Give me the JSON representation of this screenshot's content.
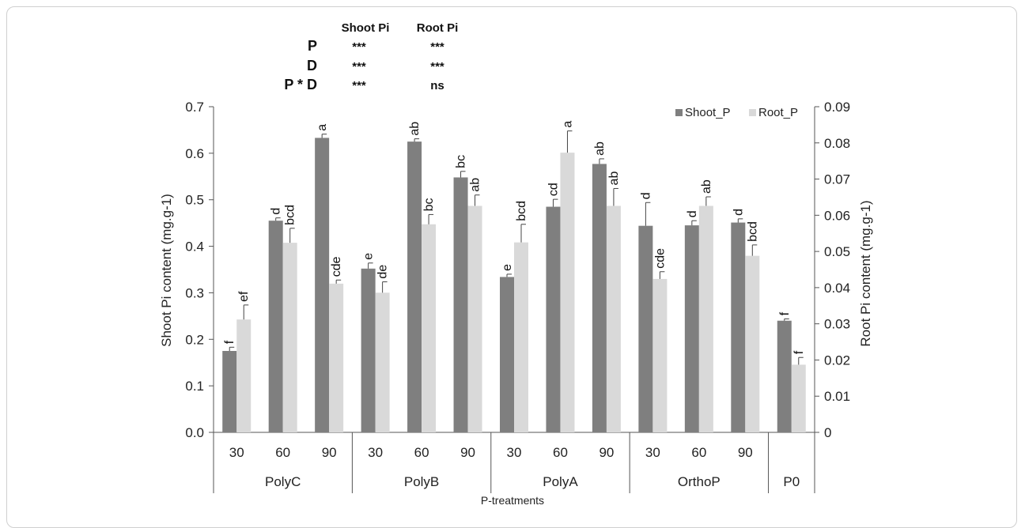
{
  "chart_data": {
    "type": "bar",
    "title": "",
    "xlabel": "P-treatments",
    "ylabel": "Shoot Pi content (mg.g-1)",
    "y2label": "Root Pi content (mg.g-1)",
    "ylim": [
      0,
      0.7
    ],
    "y2lim": [
      0,
      0.09
    ],
    "yticks": [
      "0.0",
      "0.1",
      "0.2",
      "0.3",
      "0.4",
      "0.5",
      "0.6",
      "0.7"
    ],
    "y2ticks": [
      "0",
      "0.01",
      "0.02",
      "0.03",
      "0.04",
      "0.05",
      "0.06",
      "0.07",
      "0.08",
      "0.09"
    ],
    "groups": [
      {
        "name": "PolyC",
        "doses": [
          "30",
          "60",
          "90"
        ]
      },
      {
        "name": "PolyB",
        "doses": [
          "30",
          "60",
          "90"
        ]
      },
      {
        "name": "PolyA",
        "doses": [
          "30",
          "60",
          "90"
        ]
      },
      {
        "name": "OrthoP",
        "doses": [
          "30",
          "60",
          "90"
        ]
      },
      {
        "name": "P0",
        "doses": [
          ""
        ]
      }
    ],
    "legend_position": "top-right",
    "series": [
      {
        "name": "Shoot_P",
        "axis": "left",
        "color": "#7f7f7f",
        "values": [
          0.175,
          0.455,
          0.633,
          0.352,
          0.625,
          0.548,
          0.334,
          0.485,
          0.577,
          0.444,
          0.445,
          0.451,
          0.24
        ],
        "errors": [
          0.008,
          0.006,
          0.008,
          0.012,
          0.006,
          0.013,
          0.006,
          0.016,
          0.011,
          0.05,
          0.01,
          0.008,
          0.004
        ],
        "letters": [
          "f",
          "d",
          "a",
          "e",
          "ab",
          "bc",
          "e",
          "cd",
          "ab",
          "d",
          "d",
          "d",
          "f"
        ]
      },
      {
        "name": "Root_P",
        "axis": "right",
        "color": "#d9d9d9",
        "values": [
          0.0312,
          0.0524,
          0.0411,
          0.0386,
          0.0575,
          0.0626,
          0.0525,
          0.0773,
          0.0626,
          0.0424,
          0.0626,
          0.0488,
          0.0187
        ],
        "errors": [
          0.004,
          0.004,
          0.001,
          0.003,
          0.0027,
          0.003,
          0.005,
          0.006,
          0.0048,
          0.002,
          0.0025,
          0.003,
          0.002
        ],
        "letters": [
          "ef",
          "bcd",
          "cde",
          "de",
          "bc",
          "ab",
          "bcd",
          "a",
          "ab",
          "cde",
          "ab",
          "bcd",
          "f"
        ]
      }
    ],
    "significance": {
      "headers": [
        "Shoot Pi",
        "Root Pi"
      ],
      "rows": [
        {
          "factor": "P",
          "shoot": "***",
          "root": "***"
        },
        {
          "factor": "D",
          "shoot": "***",
          "root": "***"
        },
        {
          "factor": "P * D",
          "shoot": "***",
          "root": "ns"
        }
      ]
    }
  }
}
